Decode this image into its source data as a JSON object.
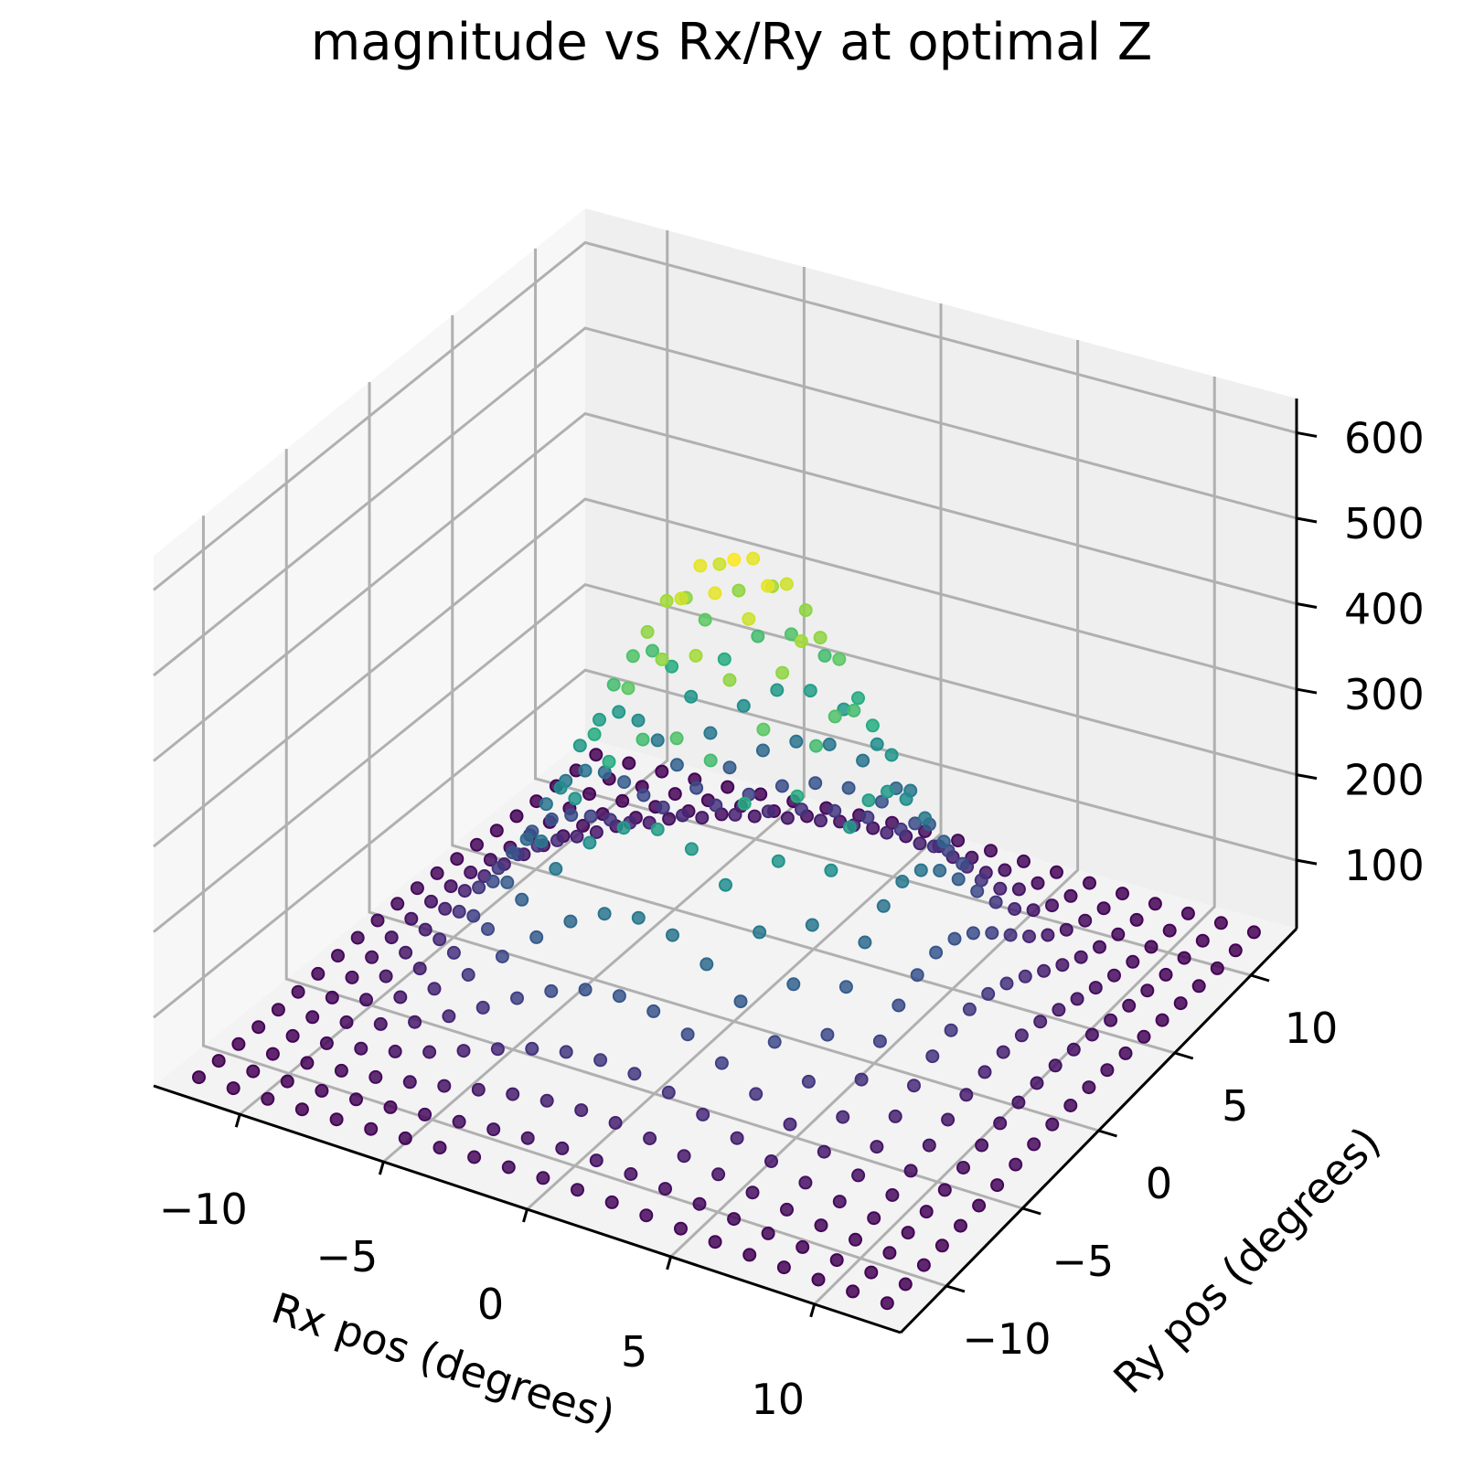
{
  "chart_data": {
    "type": "scatter",
    "title": "magnitude vs Rx/Ry at optimal Z",
    "xlabel": "Rx pos (degrees)",
    "ylabel": "Ry pos (degrees)",
    "zlabel": "",
    "xlim": [
      -13,
      13
    ],
    "ylim": [
      -13,
      13
    ],
    "zlim": [
      20,
      640
    ],
    "xticks": [
      -10,
      -5,
      0,
      5,
      10
    ],
    "yticks": [
      -10,
      -5,
      0,
      5,
      10
    ],
    "zticks": [
      100,
      200,
      300,
      400,
      500,
      600
    ],
    "xtick_labels": [
      "−10",
      "−5",
      "0",
      "5",
      "10"
    ],
    "ytick_labels": [
      "−10",
      "−5",
      "0",
      "5",
      "10"
    ],
    "ztick_labels": [
      "100",
      "200",
      "300",
      "400",
      "500",
      "600"
    ],
    "grid": true,
    "colormap": "viridis",
    "grid_range": [
      -12,
      12
    ],
    "grid_step": 1.2,
    "peak": {
      "x": 0,
      "y": 0,
      "z": 560
    },
    "z_range": [
      25,
      560
    ],
    "colors": {
      "pane": "#f2f2f2",
      "grid": "#b0b0b0",
      "axis": "#000000"
    }
  }
}
